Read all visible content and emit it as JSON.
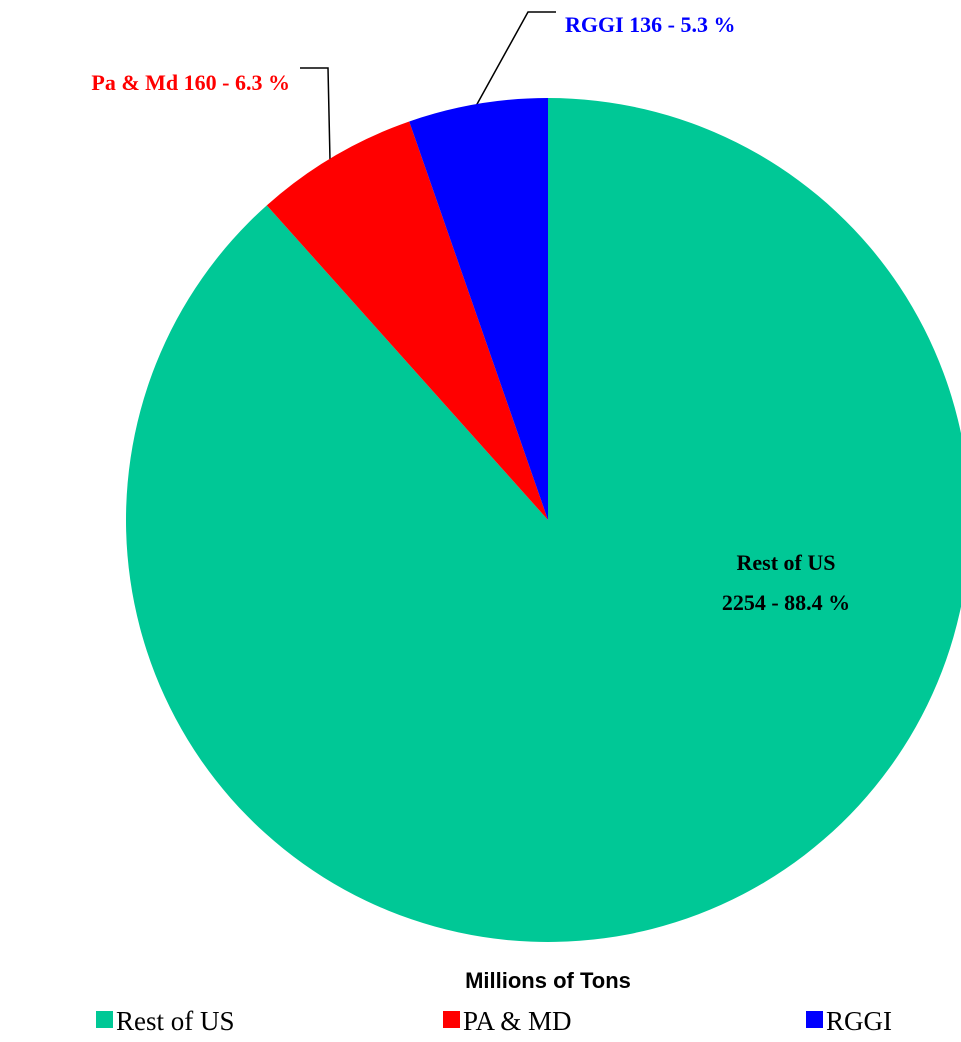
{
  "chart_data": {
    "type": "pie",
    "title": "Millions of Tons",
    "categories": [
      "Rest of US",
      "PA & MD",
      "RGGI"
    ],
    "values": [
      2254,
      160,
      136
    ],
    "colors": [
      "#00c896",
      "#ff0000",
      "#0000ff"
    ],
    "value_labels": [
      [
        "Rest of US",
        "2254 - 88.4 %"
      ],
      [
        "Pa & Md 160 - 6.3 %"
      ],
      [
        "RGGI 136 - 5.3 %"
      ]
    ],
    "label_colors": [
      "#000000",
      "#ff0000",
      "#0000ff"
    ],
    "legend": "bottom"
  }
}
